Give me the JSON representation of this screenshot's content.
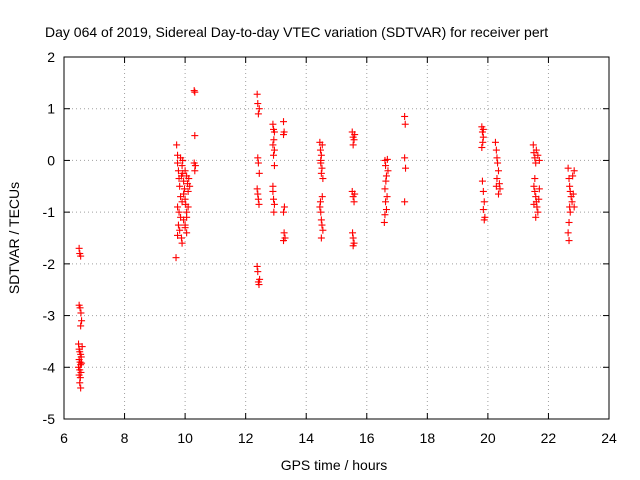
{
  "chart_data": {
    "type": "scatter",
    "title": "Day 064 of 2019, Sidereal Day-to-day VTEC variation (SDTVAR) for receiver pert",
    "xlabel": "GPS time / hours",
    "ylabel": "SDTVAR / TECUs",
    "xlim": [
      6,
      24
    ],
    "ylim": [
      -5,
      2
    ],
    "xticks": [
      6,
      8,
      10,
      12,
      14,
      16,
      18,
      20,
      22,
      24
    ],
    "yticks": [
      -5,
      -4,
      -3,
      -2,
      -1,
      0,
      1,
      2
    ],
    "grid": true,
    "marker": "+",
    "marker_color": "#ff0000",
    "series": [
      {
        "name": "SDTVAR",
        "color": "#ff0000",
        "points": [
          [
            6.5,
            -1.7
          ],
          [
            6.52,
            -1.8
          ],
          [
            6.55,
            -1.85
          ],
          [
            6.5,
            -2.8
          ],
          [
            6.53,
            -2.85
          ],
          [
            6.56,
            -2.95
          ],
          [
            6.58,
            -3.1
          ],
          [
            6.55,
            -3.2
          ],
          [
            6.48,
            -3.55
          ],
          [
            6.5,
            -3.65
          ],
          [
            6.52,
            -3.7
          ],
          [
            6.55,
            -3.75
          ],
          [
            6.57,
            -3.8
          ],
          [
            6.6,
            -3.6
          ],
          [
            6.5,
            -3.85
          ],
          [
            6.53,
            -3.9
          ],
          [
            6.55,
            -3.95
          ],
          [
            6.48,
            -4.0
          ],
          [
            6.52,
            -4.05
          ],
          [
            6.56,
            -4.1
          ],
          [
            6.58,
            -3.92
          ],
          [
            6.5,
            -4.15
          ],
          [
            6.54,
            -4.2
          ],
          [
            6.52,
            -4.3
          ],
          [
            6.55,
            -4.4
          ],
          [
            9.7,
            -1.88
          ],
          [
            9.72,
            0.3
          ],
          [
            9.75,
            0.1
          ],
          [
            9.75,
            -0.05
          ],
          [
            9.78,
            -0.2
          ],
          [
            9.8,
            -0.35
          ],
          [
            9.82,
            -0.5
          ],
          [
            9.85,
            -0.7
          ],
          [
            9.75,
            -0.9
          ],
          [
            9.8,
            -1.0
          ],
          [
            9.85,
            -1.1
          ],
          [
            9.78,
            -1.25
          ],
          [
            9.82,
            -1.35
          ],
          [
            9.88,
            -1.5
          ],
          [
            9.9,
            -1.6
          ],
          [
            9.75,
            -1.45
          ],
          [
            9.85,
            0.05
          ],
          [
            9.9,
            -0.1
          ],
          [
            9.92,
            -0.25
          ],
          [
            9.95,
            -0.4
          ],
          [
            9.98,
            -0.55
          ],
          [
            10.0,
            -0.75
          ],
          [
            10.02,
            -0.85
          ],
          [
            10.05,
            -1.0
          ],
          [
            9.95,
            -1.15
          ],
          [
            10.0,
            -1.25
          ],
          [
            10.05,
            -1.4
          ],
          [
            9.9,
            -0.8
          ],
          [
            9.88,
            -0.3
          ],
          [
            9.92,
            0.0
          ],
          [
            10.0,
            -0.2
          ],
          [
            10.05,
            -0.3
          ],
          [
            10.08,
            -0.45
          ],
          [
            10.1,
            -0.6
          ],
          [
            10.12,
            -0.35
          ],
          [
            10.15,
            -0.5
          ],
          [
            10.1,
            -0.9
          ],
          [
            10.05,
            -1.1
          ],
          [
            10.0,
            -1.3
          ],
          [
            9.95,
            -0.65
          ],
          [
            10.3,
            1.35
          ],
          [
            10.32,
            1.32
          ],
          [
            10.32,
            0.48
          ],
          [
            10.3,
            -0.05
          ],
          [
            10.34,
            -0.1
          ],
          [
            10.32,
            -0.2
          ],
          [
            12.38,
            1.28
          ],
          [
            12.4,
            1.1
          ],
          [
            12.45,
            1.0
          ],
          [
            12.42,
            0.9
          ],
          [
            12.4,
            0.05
          ],
          [
            12.42,
            -0.05
          ],
          [
            12.45,
            -0.25
          ],
          [
            12.38,
            -0.55
          ],
          [
            12.4,
            -0.65
          ],
          [
            12.42,
            -0.75
          ],
          [
            12.44,
            -0.85
          ],
          [
            12.38,
            -2.05
          ],
          [
            12.4,
            -2.15
          ],
          [
            12.42,
            -2.35
          ],
          [
            12.44,
            -2.4
          ],
          [
            12.46,
            -2.3
          ],
          [
            12.9,
            0.7
          ],
          [
            12.92,
            0.6
          ],
          [
            12.95,
            0.55
          ],
          [
            12.93,
            0.4
          ],
          [
            12.9,
            0.3
          ],
          [
            12.95,
            0.2
          ],
          [
            12.92,
            0.1
          ],
          [
            12.95,
            -0.1
          ],
          [
            12.9,
            -0.6
          ],
          [
            12.92,
            -0.75
          ],
          [
            12.95,
            -0.85
          ],
          [
            12.93,
            -1.0
          ],
          [
            12.9,
            -0.5
          ],
          [
            13.25,
            0.75
          ],
          [
            13.27,
            0.55
          ],
          [
            13.25,
            0.5
          ],
          [
            13.28,
            -0.9
          ],
          [
            13.25,
            -1.0
          ],
          [
            13.27,
            -1.4
          ],
          [
            13.3,
            -1.5
          ],
          [
            13.25,
            -1.55
          ],
          [
            14.45,
            0.35
          ],
          [
            14.47,
            0.2
          ],
          [
            14.5,
            0.1
          ],
          [
            14.48,
            -0.05
          ],
          [
            14.52,
            -0.15
          ],
          [
            14.5,
            -0.25
          ],
          [
            14.55,
            -0.35
          ],
          [
            14.48,
            0.0
          ],
          [
            14.53,
            0.3
          ],
          [
            14.45,
            -0.9
          ],
          [
            14.48,
            -1.0
          ],
          [
            14.5,
            -1.15
          ],
          [
            14.52,
            -1.25
          ],
          [
            14.55,
            -1.35
          ],
          [
            14.5,
            -1.5
          ],
          [
            14.47,
            -0.8
          ],
          [
            14.53,
            -0.7
          ],
          [
            15.52,
            0.55
          ],
          [
            15.55,
            0.45
          ],
          [
            15.58,
            0.4
          ],
          [
            15.55,
            0.3
          ],
          [
            15.6,
            0.5
          ],
          [
            15.52,
            -0.6
          ],
          [
            15.55,
            -0.7
          ],
          [
            15.58,
            -0.8
          ],
          [
            15.6,
            -0.65
          ],
          [
            15.53,
            -1.4
          ],
          [
            15.55,
            -1.5
          ],
          [
            15.58,
            -1.6
          ],
          [
            15.55,
            -1.65
          ],
          [
            16.6,
            0.0
          ],
          [
            16.62,
            -0.1
          ],
          [
            16.65,
            -0.3
          ],
          [
            16.63,
            -0.4
          ],
          [
            16.6,
            -0.55
          ],
          [
            16.62,
            -0.8
          ],
          [
            16.65,
            -0.95
          ],
          [
            16.6,
            -1.05
          ],
          [
            16.58,
            -1.2
          ],
          [
            16.67,
            -0.7
          ],
          [
            16.7,
            -0.2
          ],
          [
            16.68,
            0.02
          ],
          [
            17.25,
            0.85
          ],
          [
            17.27,
            0.7
          ],
          [
            17.25,
            0.05
          ],
          [
            17.28,
            -0.15
          ],
          [
            17.25,
            -0.8
          ],
          [
            19.8,
            0.65
          ],
          [
            19.82,
            0.55
          ],
          [
            19.85,
            0.45
          ],
          [
            19.83,
            0.35
          ],
          [
            19.8,
            0.25
          ],
          [
            19.85,
            0.6
          ],
          [
            19.82,
            -0.4
          ],
          [
            19.85,
            -0.6
          ],
          [
            19.88,
            -0.8
          ],
          [
            19.85,
            -0.95
          ],
          [
            19.9,
            -1.1
          ],
          [
            19.88,
            -1.15
          ],
          [
            20.25,
            0.35
          ],
          [
            20.28,
            0.2
          ],
          [
            20.3,
            0.05
          ],
          [
            20.32,
            -0.05
          ],
          [
            20.35,
            -0.2
          ],
          [
            20.3,
            -0.35
          ],
          [
            20.38,
            -0.45
          ],
          [
            20.4,
            -0.55
          ],
          [
            20.35,
            -0.65
          ],
          [
            20.28,
            -0.5
          ],
          [
            21.5,
            0.3
          ],
          [
            21.52,
            0.15
          ],
          [
            21.55,
            0.05
          ],
          [
            21.58,
            -0.05
          ],
          [
            21.6,
            0.2
          ],
          [
            21.65,
            0.1
          ],
          [
            21.7,
            0.0
          ],
          [
            21.52,
            -0.5
          ],
          [
            21.55,
            -0.6
          ],
          [
            21.58,
            -0.7
          ],
          [
            21.6,
            -0.8
          ],
          [
            21.62,
            -0.9
          ],
          [
            21.65,
            -1.0
          ],
          [
            21.58,
            -1.1
          ],
          [
            21.52,
            -0.85
          ],
          [
            21.68,
            -0.75
          ],
          [
            21.7,
            -0.55
          ],
          [
            21.55,
            -0.35
          ],
          [
            22.65,
            -0.15
          ],
          [
            22.68,
            -0.35
          ],
          [
            22.7,
            -0.5
          ],
          [
            22.72,
            -0.6
          ],
          [
            22.75,
            -0.7
          ],
          [
            22.78,
            -0.8
          ],
          [
            22.7,
            -0.9
          ],
          [
            22.72,
            -1.0
          ],
          [
            22.68,
            -1.2
          ],
          [
            22.65,
            -1.4
          ],
          [
            22.68,
            -1.55
          ],
          [
            22.8,
            -0.3
          ],
          [
            22.85,
            -0.2
          ],
          [
            22.82,
            -0.65
          ],
          [
            22.85,
            -0.9
          ]
        ]
      }
    ]
  }
}
